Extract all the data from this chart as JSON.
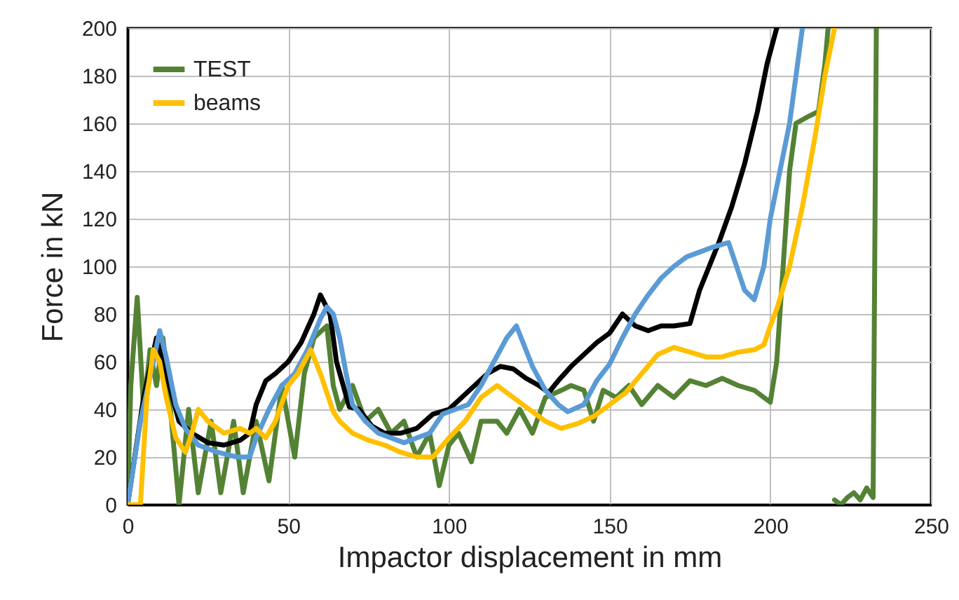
{
  "chart_data": {
    "type": "line",
    "xlabel": "Impactor displacement in mm",
    "ylabel": "Force in kN",
    "xlim": [
      0,
      250
    ],
    "xticks": [
      0,
      50,
      100,
      150,
      200,
      250
    ],
    "ylim": [
      0,
      200
    ],
    "yticks": [
      0,
      20,
      40,
      60,
      80,
      100,
      120,
      140,
      160,
      180,
      200
    ],
    "grid": true,
    "legend": "top left",
    "series": [
      {
        "name": "TEST",
        "color": "#548235",
        "x": [
          0,
          1,
          3,
          5,
          7,
          9,
          11,
          13,
          16,
          19,
          22,
          26,
          29,
          33,
          36,
          40,
          44,
          48,
          52,
          55,
          58,
          62,
          64,
          66,
          70,
          74,
          78,
          82,
          86,
          90,
          94,
          97,
          100,
          103,
          107,
          110,
          115,
          118,
          122,
          126,
          130,
          135,
          138,
          142,
          145,
          148,
          152,
          156,
          160,
          165,
          170,
          175,
          180,
          185,
          190,
          195,
          198,
          200,
          202,
          204,
          206,
          208,
          212,
          215,
          217,
          218,
          219,
          220,
          222,
          224,
          226,
          228,
          230,
          232,
          233
        ],
        "values": [
          0,
          50,
          87,
          40,
          65,
          50,
          70,
          45,
          0,
          40,
          5,
          35,
          5,
          35,
          5,
          35,
          10,
          50,
          20,
          55,
          70,
          75,
          50,
          40,
          50,
          35,
          40,
          30,
          35,
          20,
          30,
          8,
          25,
          30,
          18,
          35,
          35,
          30,
          40,
          30,
          45,
          48,
          50,
          48,
          35,
          48,
          45,
          50,
          42,
          50,
          45,
          52,
          50,
          53,
          50,
          48,
          45,
          43,
          60,
          100,
          140,
          160,
          163,
          165,
          185,
          200,
          null,
          2,
          0,
          3,
          5,
          2,
          7,
          3,
          200
        ]
      },
      {
        "color": "#000000",
        "x": [
          0,
          5,
          9,
          12,
          16,
          20,
          25,
          30,
          35,
          38,
          40,
          43,
          46,
          50,
          54,
          58,
          60,
          63,
          65,
          69,
          72,
          76,
          80,
          85,
          90,
          95,
          100,
          104,
          108,
          112,
          116,
          120,
          124,
          128,
          131,
          134,
          138,
          142,
          146,
          150,
          154,
          158,
          162,
          166,
          170,
          175,
          178,
          184,
          188,
          192,
          196,
          199,
          202
        ],
        "values": [
          0,
          45,
          70,
          55,
          35,
          30,
          26,
          25,
          27,
          30,
          42,
          52,
          55,
          60,
          68,
          80,
          88,
          80,
          60,
          41,
          40,
          33,
          30,
          30,
          32,
          38,
          40,
          45,
          50,
          55,
          58,
          57,
          53,
          50,
          47,
          52,
          58,
          63,
          68,
          72,
          80,
          75,
          73,
          75,
          75,
          76,
          90,
          110,
          125,
          143,
          165,
          185,
          200
        ]
      },
      {
        "color": "#5b9bd5",
        "x": [
          0,
          4,
          8,
          10,
          12,
          15,
          18,
          22,
          28,
          34,
          38,
          40,
          44,
          48,
          52,
          56,
          60,
          62,
          64,
          66,
          68,
          70,
          74,
          78,
          82,
          86,
          90,
          94,
          98,
          102,
          106,
          110,
          114,
          118,
          121,
          126,
          130,
          134,
          137,
          142,
          146,
          150,
          154,
          158,
          162,
          166,
          170,
          174,
          178,
          182,
          187,
          190,
          192,
          195,
          198,
          200,
          203,
          206,
          208,
          210
        ],
        "values": [
          0,
          35,
          60,
          73,
          62,
          42,
          32,
          25,
          22,
          20,
          20,
          28,
          40,
          50,
          55,
          65,
          78,
          83,
          80,
          70,
          55,
          42,
          35,
          30,
          28,
          26,
          28,
          30,
          38,
          40,
          42,
          50,
          60,
          70,
          75,
          58,
          48,
          42,
          39,
          42,
          52,
          59,
          70,
          80,
          88,
          95,
          100,
          104,
          106,
          108,
          110,
          98,
          90,
          86,
          100,
          120,
          140,
          160,
          180,
          200
        ]
      },
      {
        "name": "beams",
        "color": "#ffc000",
        "x": [
          0,
          4,
          6,
          8,
          10,
          12,
          15,
          18,
          20,
          22,
          25,
          30,
          35,
          38,
          40,
          43,
          46,
          50,
          53,
          57,
          60,
          64,
          66,
          70,
          75,
          80,
          85,
          90,
          95,
          100,
          105,
          110,
          115,
          120,
          125,
          130,
          135,
          140,
          145,
          150,
          155,
          160,
          165,
          170,
          175,
          180,
          185,
          190,
          195,
          198,
          200,
          202,
          206,
          210,
          214,
          217,
          220
        ],
        "values": [
          0,
          0,
          45,
          65,
          60,
          45,
          28,
          22,
          30,
          40,
          35,
          30,
          32,
          30,
          32,
          28,
          35,
          50,
          55,
          65,
          55,
          39,
          35,
          30,
          27,
          25,
          22,
          20,
          20,
          28,
          35,
          45,
          50,
          45,
          40,
          35,
          32,
          34,
          37,
          42,
          47,
          55,
          63,
          66,
          64,
          62,
          62,
          64,
          65,
          67,
          75,
          82,
          100,
          125,
          155,
          180,
          200
        ]
      }
    ]
  }
}
